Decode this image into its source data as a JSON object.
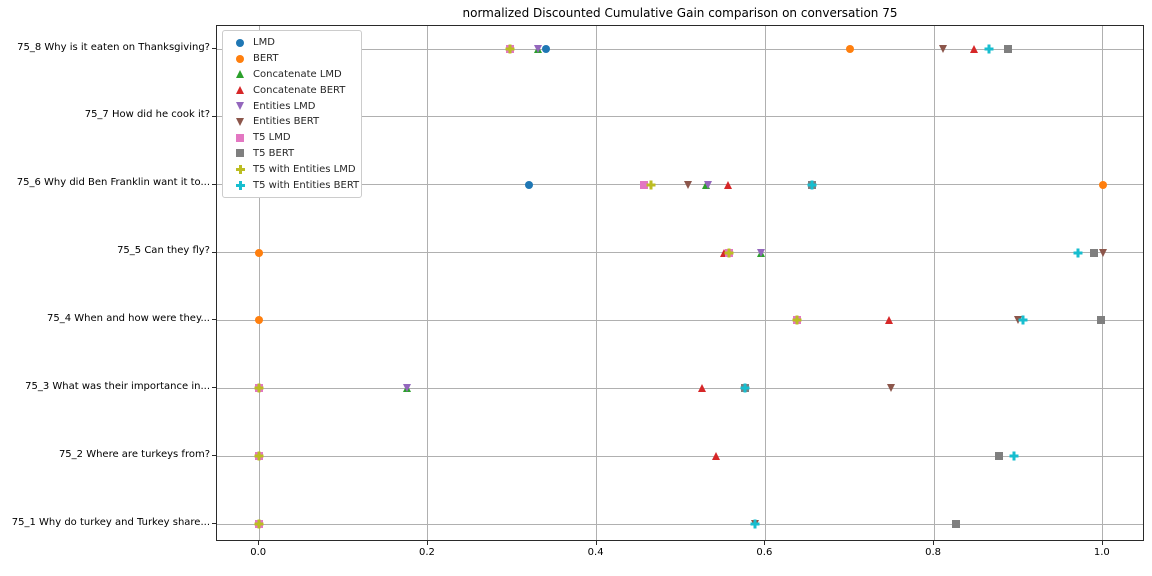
{
  "chart_data": {
    "type": "scatter",
    "title": "normalized Discounted Cumulative Gain comparison on conversation 75",
    "xlabel": "",
    "ylabel": "",
    "xlim": [
      -0.05,
      1.05
    ],
    "x_tick_values": [
      0.0,
      0.2,
      0.4,
      0.6,
      0.8,
      1.0
    ],
    "x_tick_labels": [
      "0.0",
      "0.2",
      "0.4",
      "0.6",
      "0.8",
      "1.0"
    ],
    "grid": true,
    "legend_position": "upper left",
    "categories": [
      "75_8 Why is it eaten on Thanksgiving?",
      "75_7 How did he cook it?",
      "75_6 Why did Ben Franklin want it to...",
      "75_5 Can they fly?",
      "75_4 When and how were they...",
      "75_3 What was their importance in...",
      "75_2 Where are turkeys from?",
      "75_1 Why do turkey and Turkey share..."
    ],
    "series": [
      {
        "name": "LMD",
        "marker": "circle",
        "color": "#1f77b4",
        "values": [
          0.34,
          null,
          0.32,
          null,
          null,
          null,
          null,
          null
        ]
      },
      {
        "name": "BERT",
        "marker": "circle",
        "color": "#ff7f0e",
        "values": [
          0.7,
          null,
          1.0,
          0.0,
          0.0,
          null,
          null,
          null
        ]
      },
      {
        "name": "Concatenate LMD",
        "marker": "triangle-up",
        "color": "#2ca02c",
        "values": [
          0.33,
          null,
          0.53,
          0.595,
          null,
          0.175,
          null,
          null
        ]
      },
      {
        "name": "Concatenate BERT",
        "marker": "triangle-up",
        "color": "#d62728",
        "values": [
          0.847,
          null,
          0.556,
          0.551,
          0.747,
          0.525,
          0.541,
          null
        ]
      },
      {
        "name": "Entities LMD",
        "marker": "triangle-down",
        "color": "#9467bd",
        "values": [
          0.33,
          null,
          0.532,
          0.595,
          null,
          0.175,
          null,
          null
        ]
      },
      {
        "name": "Entities BERT",
        "marker": "triangle-down",
        "color": "#8c564b",
        "values": [
          0.81,
          null,
          0.508,
          1.0,
          0.899,
          0.749,
          null,
          0.588
        ]
      },
      {
        "name": "T5 LMD",
        "marker": "square",
        "color": "#e377c2",
        "values": [
          0.297,
          null,
          0.456,
          0.557,
          0.637,
          0.0,
          0.0,
          0.0
        ]
      },
      {
        "name": "T5 BERT",
        "marker": "square",
        "color": "#7f7f7f",
        "values": [
          0.888,
          null,
          0.655,
          0.99,
          0.998,
          0.576,
          0.877,
          0.826
        ]
      },
      {
        "name": "T5 with Entities LMD",
        "marker": "plus",
        "color": "#bcbd22",
        "values": [
          0.297,
          null,
          0.465,
          0.557,
          0.637,
          0.0,
          0.0,
          0.0
        ]
      },
      {
        "name": "T5 with Entities BERT",
        "marker": "plus",
        "color": "#17becf",
        "values": [
          0.865,
          null,
          0.655,
          0.97,
          0.905,
          0.576,
          0.895,
          0.588
        ]
      }
    ]
  }
}
